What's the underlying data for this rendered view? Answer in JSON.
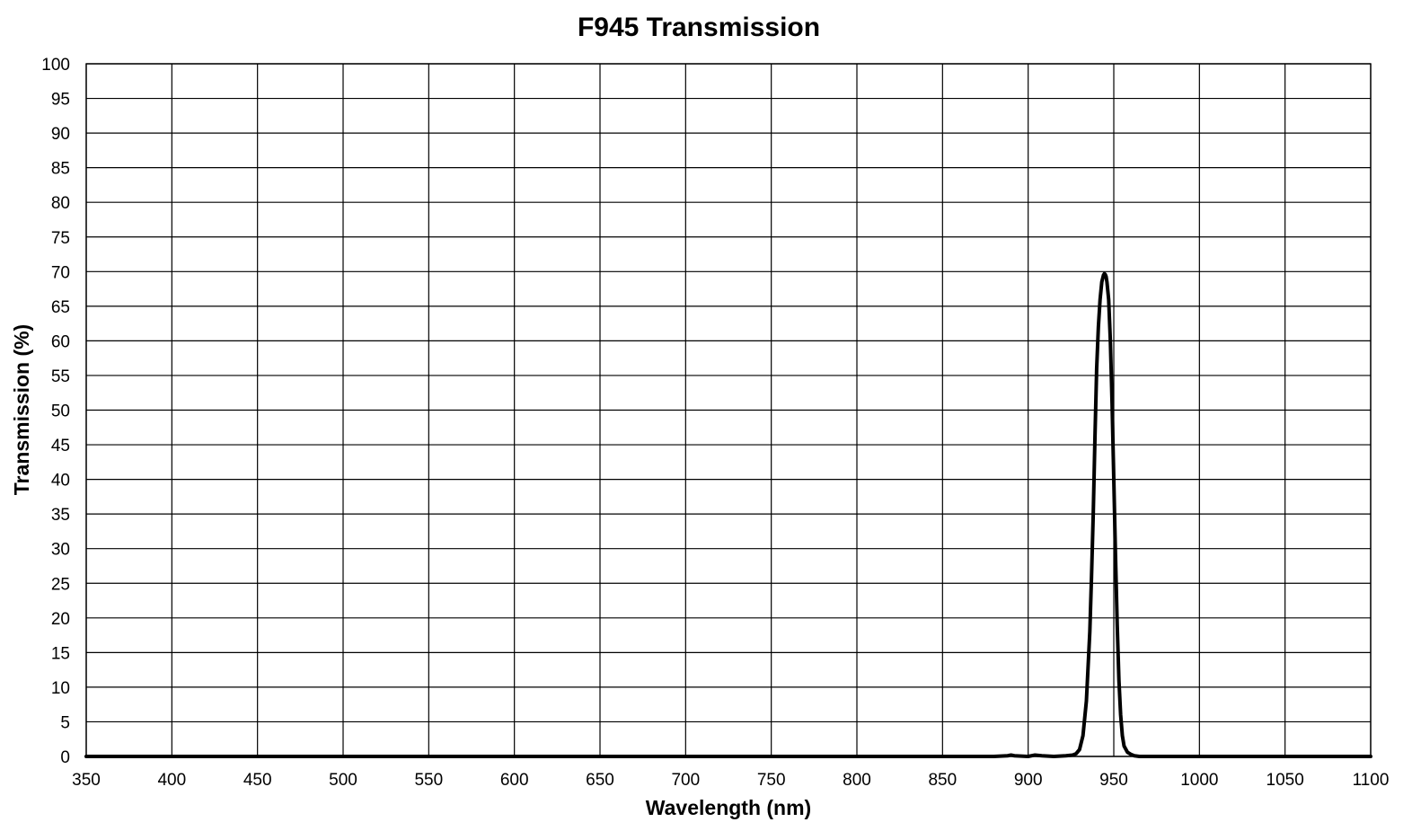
{
  "chart_data": {
    "type": "line",
    "title": "F945 Transmission",
    "xlabel": "Wavelength (nm)",
    "ylabel": "Transmission (%)",
    "xlim": [
      350,
      1100
    ],
    "ylim": [
      0,
      100
    ],
    "x_ticks": [
      "350",
      "400",
      "450",
      "500",
      "550",
      "600",
      "650",
      "700",
      "750",
      "800",
      "850",
      "900",
      "950",
      "1000",
      "1050",
      "1100"
    ],
    "y_ticks": [
      "0",
      "5",
      "10",
      "15",
      "20",
      "25",
      "30",
      "35",
      "40",
      "45",
      "50",
      "55",
      "60",
      "65",
      "70",
      "75",
      "80",
      "85",
      "90",
      "95",
      "100"
    ],
    "grid": true,
    "legend": "none",
    "series": [
      {
        "color": "#000000",
        "x": [
          350,
          400,
          450,
          500,
          550,
          600,
          650,
          700,
          750,
          800,
          850,
          880,
          888,
          890,
          892,
          900,
          904,
          908,
          915,
          922,
          926,
          928,
          930,
          932,
          934,
          936,
          937,
          938,
          939,
          940,
          941,
          942,
          943,
          944,
          944.5,
          945,
          945.5,
          946,
          947,
          948,
          949,
          950,
          951,
          952,
          953,
          954,
          955,
          956,
          958,
          960,
          962,
          965,
          970,
          980,
          1000,
          1050,
          1100
        ],
        "y": [
          0,
          0,
          0,
          0,
          0,
          0,
          0,
          0,
          0,
          0,
          0,
          0,
          0.1,
          0.2,
          0.1,
          0,
          0.2,
          0.1,
          0,
          0.1,
          0.2,
          0.4,
          1,
          3,
          8,
          18,
          26,
          35,
          46,
          56,
          62,
          66,
          68.5,
          69.5,
          69.7,
          69.6,
          69.3,
          68.5,
          66,
          60,
          51,
          40,
          29,
          19,
          11,
          6,
          3,
          1.5,
          0.6,
          0.3,
          0.1,
          0,
          0,
          0,
          0,
          0,
          0
        ]
      }
    ]
  }
}
